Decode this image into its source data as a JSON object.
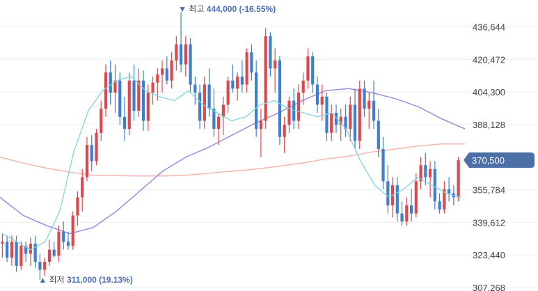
{
  "chart_data": {
    "type": "candlestick",
    "y_ticks": [
      "436,644",
      "420,472",
      "404,300",
      "388,128",
      "355,784",
      "339,612",
      "323,440",
      "307,268"
    ],
    "ylim": [
      305500,
      450000
    ],
    "current_price": {
      "label": "370,500",
      "value": 370500
    },
    "annotations": {
      "high": {
        "marker": "▼",
        "key": "최고",
        "value": "444,000",
        "pct": "(-16.55%)",
        "value_num": 444000
      },
      "low": {
        "marker": "▲",
        "key": "최저",
        "value": "311,000",
        "pct": "(19.13%)",
        "value_num": 311000
      }
    },
    "colors": {
      "up": "#e0474c",
      "down": "#3a7fd5",
      "ma_short": "#7fd3e3",
      "ma_mid": "#9b8ee0",
      "ma_long": "#f4b6b0",
      "grid": "#eeeeee",
      "price_tag": "#4c6fa8"
    },
    "candles": [
      [
        329000,
        334000,
        322000,
        330000
      ],
      [
        330000,
        333000,
        320000,
        322000
      ],
      [
        322000,
        333000,
        318000,
        330000
      ],
      [
        330000,
        333000,
        315000,
        318000
      ],
      [
        318000,
        330000,
        316000,
        328000
      ],
      [
        328000,
        330000,
        320000,
        324000
      ],
      [
        324000,
        332000,
        318000,
        329000
      ],
      [
        329000,
        333000,
        317000,
        320000
      ],
      [
        320000,
        324000,
        311000,
        316000
      ],
      [
        316000,
        322000,
        313000,
        320000
      ],
      [
        320000,
        331000,
        318000,
        326000
      ],
      [
        326000,
        330000,
        322000,
        323000
      ],
      [
        323000,
        338000,
        320000,
        335000
      ],
      [
        335000,
        340000,
        326000,
        330000
      ],
      [
        330000,
        335000,
        326000,
        328000
      ],
      [
        328000,
        345000,
        326000,
        343000
      ],
      [
        343000,
        355000,
        338000,
        352000
      ],
      [
        352000,
        366000,
        345000,
        362000
      ],
      [
        362000,
        382000,
        360000,
        378000
      ],
      [
        378000,
        383000,
        365000,
        370000
      ],
      [
        370000,
        386000,
        368000,
        384000
      ],
      [
        384000,
        400000,
        380000,
        396000
      ],
      [
        396000,
        418000,
        392000,
        414000
      ],
      [
        414000,
        420000,
        398000,
        404000
      ],
      [
        404000,
        418000,
        394000,
        410000
      ],
      [
        410000,
        414000,
        388000,
        392000
      ],
      [
        392000,
        402000,
        380000,
        386000
      ],
      [
        386000,
        414000,
        383000,
        410000
      ],
      [
        410000,
        418000,
        390000,
        395000
      ],
      [
        395000,
        416000,
        392000,
        410000
      ],
      [
        410000,
        415000,
        385000,
        390000
      ],
      [
        390000,
        408000,
        385000,
        404000
      ],
      [
        404000,
        412000,
        398000,
        409000
      ],
      [
        409000,
        416000,
        400000,
        413000
      ],
      [
        413000,
        420000,
        404000,
        416000
      ],
      [
        416000,
        422000,
        408000,
        410000
      ],
      [
        410000,
        424000,
        406000,
        420000
      ],
      [
        420000,
        432000,
        415000,
        428000
      ],
      [
        428000,
        444000,
        414000,
        418000
      ],
      [
        418000,
        432000,
        412000,
        428000
      ],
      [
        428000,
        431000,
        404000,
        408000
      ],
      [
        408000,
        412000,
        398000,
        404000
      ],
      [
        404000,
        408000,
        386000,
        390000
      ],
      [
        390000,
        412000,
        386000,
        408000
      ],
      [
        408000,
        416000,
        392000,
        396000
      ],
      [
        396000,
        406000,
        382000,
        386000
      ],
      [
        386000,
        394000,
        378000,
        392000
      ],
      [
        392000,
        402000,
        383000,
        398000
      ],
      [
        398000,
        412000,
        394000,
        410000
      ],
      [
        410000,
        418000,
        404000,
        406000
      ],
      [
        406000,
        414000,
        400000,
        412000
      ],
      [
        412000,
        420000,
        404000,
        408000
      ],
      [
        408000,
        426000,
        404000,
        424000
      ],
      [
        424000,
        428000,
        410000,
        414000
      ],
      [
        414000,
        420000,
        382000,
        386000
      ],
      [
        386000,
        396000,
        372000,
        390000
      ],
      [
        390000,
        436000,
        386000,
        432000
      ],
      [
        432000,
        434000,
        412000,
        416000
      ],
      [
        416000,
        426000,
        404000,
        420000
      ],
      [
        420000,
        422000,
        378000,
        382000
      ],
      [
        382000,
        392000,
        374000,
        388000
      ],
      [
        388000,
        402000,
        384000,
        400000
      ],
      [
        400000,
        406000,
        386000,
        390000
      ],
      [
        390000,
        408000,
        386000,
        404000
      ],
      [
        404000,
        414000,
        398000,
        410000
      ],
      [
        410000,
        426000,
        406000,
        422000
      ],
      [
        422000,
        424000,
        404000,
        408000
      ],
      [
        408000,
        412000,
        394000,
        398000
      ],
      [
        398000,
        408000,
        390000,
        402000
      ],
      [
        402000,
        404000,
        380000,
        384000
      ],
      [
        384000,
        398000,
        380000,
        394000
      ],
      [
        394000,
        398000,
        384000,
        388000
      ],
      [
        388000,
        396000,
        380000,
        392000
      ],
      [
        392000,
        398000,
        382000,
        386000
      ],
      [
        386000,
        402000,
        380000,
        398000
      ],
      [
        398000,
        406000,
        376000,
        380000
      ],
      [
        380000,
        410000,
        376000,
        406000
      ],
      [
        406000,
        410000,
        392000,
        396000
      ],
      [
        396000,
        404000,
        386000,
        400000
      ],
      [
        400000,
        410000,
        386000,
        390000
      ],
      [
        390000,
        396000,
        372000,
        376000
      ],
      [
        376000,
        382000,
        356000,
        360000
      ],
      [
        360000,
        368000,
        344000,
        348000
      ],
      [
        348000,
        362000,
        342000,
        358000
      ],
      [
        358000,
        362000,
        340000,
        344000
      ],
      [
        344000,
        350000,
        338000,
        340000
      ],
      [
        340000,
        352000,
        338000,
        348000
      ],
      [
        348000,
        356000,
        340000,
        344000
      ],
      [
        344000,
        364000,
        342000,
        360000
      ],
      [
        360000,
        372000,
        356000,
        368000
      ],
      [
        368000,
        374000,
        358000,
        362000
      ],
      [
        362000,
        370000,
        352000,
        366000
      ],
      [
        366000,
        370000,
        346000,
        350000
      ],
      [
        350000,
        354000,
        344000,
        346000
      ],
      [
        346000,
        360000,
        344000,
        356000
      ],
      [
        356000,
        362000,
        350000,
        354000
      ],
      [
        354000,
        358000,
        348000,
        352000
      ],
      [
        352000,
        372000,
        350000,
        370500
      ]
    ],
    "ma_short": [
      [
        0,
        334000
      ],
      [
        6,
        330000
      ],
      [
        12,
        326000
      ],
      [
        18,
        330000
      ],
      [
        24,
        345000
      ],
      [
        30,
        375000
      ],
      [
        36,
        395000
      ],
      [
        42,
        405000
      ],
      [
        48,
        410000
      ],
      [
        54,
        412000
      ],
      [
        60,
        405000
      ],
      [
        66,
        402000
      ],
      [
        72,
        400000
      ],
      [
        78,
        405000
      ],
      [
        84,
        398000
      ],
      [
        90,
        394000
      ],
      [
        96,
        390000
      ],
      [
        102,
        392000
      ],
      [
        108,
        398000
      ],
      [
        114,
        400000
      ],
      [
        120,
        396000
      ],
      [
        126,
        394000
      ],
      [
        132,
        392000
      ],
      [
        138,
        394000
      ],
      [
        144,
        386000
      ],
      [
        150,
        370000
      ],
      [
        156,
        358000
      ],
      [
        162,
        352000
      ],
      [
        168,
        356000
      ],
      [
        174,
        362000
      ],
      [
        180,
        358000
      ],
      [
        186,
        354000
      ],
      [
        192,
        352000
      ]
    ],
    "ma_mid": [
      [
        0,
        352000
      ],
      [
        12,
        343000
      ],
      [
        24,
        338000
      ],
      [
        36,
        334000
      ],
      [
        48,
        337000
      ],
      [
        60,
        345000
      ],
      [
        72,
        355000
      ],
      [
        84,
        365000
      ],
      [
        96,
        372000
      ],
      [
        108,
        377000
      ],
      [
        120,
        383000
      ],
      [
        132,
        389000
      ],
      [
        144,
        394000
      ],
      [
        156,
        400000
      ],
      [
        168,
        405000
      ],
      [
        180,
        406000
      ],
      [
        192,
        404000
      ],
      [
        204,
        401000
      ],
      [
        216,
        397000
      ],
      [
        228,
        391000
      ],
      [
        240,
        386000
      ]
    ],
    "ma_long": [
      [
        0,
        372000
      ],
      [
        12,
        369000
      ],
      [
        24,
        366500
      ],
      [
        36,
        364500
      ],
      [
        48,
        363000
      ],
      [
        60,
        362800
      ],
      [
        72,
        362600
      ],
      [
        84,
        362600
      ],
      [
        96,
        363000
      ],
      [
        108,
        364000
      ],
      [
        120,
        365000
      ],
      [
        132,
        366000
      ],
      [
        144,
        367500
      ],
      [
        156,
        369000
      ],
      [
        168,
        371000
      ],
      [
        180,
        372500
      ],
      [
        192,
        374500
      ],
      [
        204,
        376000
      ],
      [
        216,
        377500
      ],
      [
        228,
        378500
      ],
      [
        240,
        378500
      ]
    ]
  }
}
